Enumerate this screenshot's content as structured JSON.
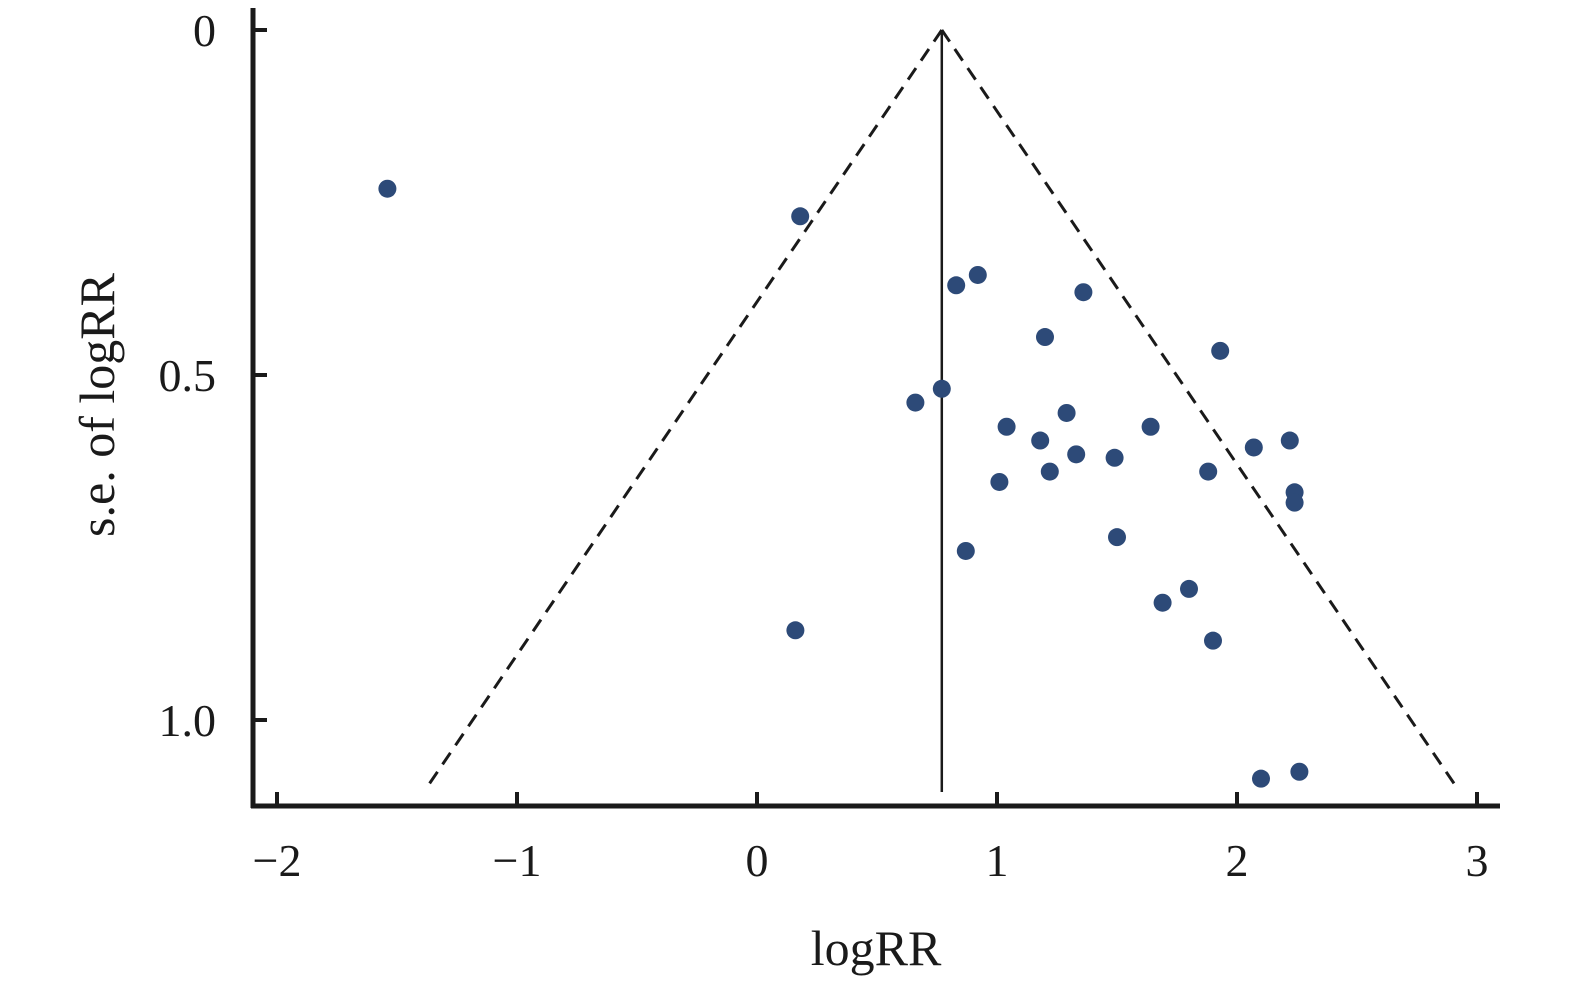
{
  "chart_data": {
    "type": "scatter",
    "title": "",
    "xlabel": "logRR",
    "ylabel": "s.e. of logRR",
    "xlim": [
      -2.1,
      3.1
    ],
    "ylim": [
      0,
      1.13
    ],
    "y_inverted": true,
    "x_ticks": [
      {
        "value": -2,
        "label": "−2"
      },
      {
        "value": -1,
        "label": "−1"
      },
      {
        "value": 0,
        "label": "0"
      },
      {
        "value": 1,
        "label": "1"
      },
      {
        "value": 2,
        "label": "2"
      },
      {
        "value": 3,
        "label": "3"
      }
    ],
    "y_ticks": [
      {
        "value": 0,
        "label": "0"
      },
      {
        "value": 0.5,
        "label": "0.5"
      },
      {
        "value": 1.0,
        "label": "1.0"
      }
    ],
    "pooled_estimate": 0.77,
    "funnel_limits": {
      "apex": [
        0.77,
        0.0
      ],
      "bottom": 1.1,
      "left_base": -1.38,
      "right_base": 2.92
    },
    "points": [
      {
        "x": -1.54,
        "y": 0.23
      },
      {
        "x": 0.18,
        "y": 0.27
      },
      {
        "x": 0.83,
        "y": 0.37
      },
      {
        "x": 0.92,
        "y": 0.355
      },
      {
        "x": 1.36,
        "y": 0.38
      },
      {
        "x": 1.2,
        "y": 0.445
      },
      {
        "x": 1.93,
        "y": 0.465
      },
      {
        "x": 0.77,
        "y": 0.52
      },
      {
        "x": 0.66,
        "y": 0.54
      },
      {
        "x": 1.29,
        "y": 0.555
      },
      {
        "x": 1.04,
        "y": 0.575
      },
      {
        "x": 1.18,
        "y": 0.595
      },
      {
        "x": 1.64,
        "y": 0.575
      },
      {
        "x": 2.22,
        "y": 0.595
      },
      {
        "x": 2.07,
        "y": 0.605
      },
      {
        "x": 1.33,
        "y": 0.615
      },
      {
        "x": 1.49,
        "y": 0.62
      },
      {
        "x": 1.22,
        "y": 0.64
      },
      {
        "x": 1.88,
        "y": 0.64
      },
      {
        "x": 1.01,
        "y": 0.655
      },
      {
        "x": 2.24,
        "y": 0.67
      },
      {
        "x": 2.24,
        "y": 0.685
      },
      {
        "x": 1.5,
        "y": 0.735
      },
      {
        "x": 0.87,
        "y": 0.755
      },
      {
        "x": 1.8,
        "y": 0.81
      },
      {
        "x": 1.69,
        "y": 0.83
      },
      {
        "x": 0.16,
        "y": 0.87
      },
      {
        "x": 1.9,
        "y": 0.885
      },
      {
        "x": 2.26,
        "y": 1.075
      },
      {
        "x": 2.1,
        "y": 1.085
      }
    ],
    "colors": {
      "points": "#2d4a78",
      "axes": "#1a1a1a",
      "funnel": "#1a1a1a"
    }
  }
}
